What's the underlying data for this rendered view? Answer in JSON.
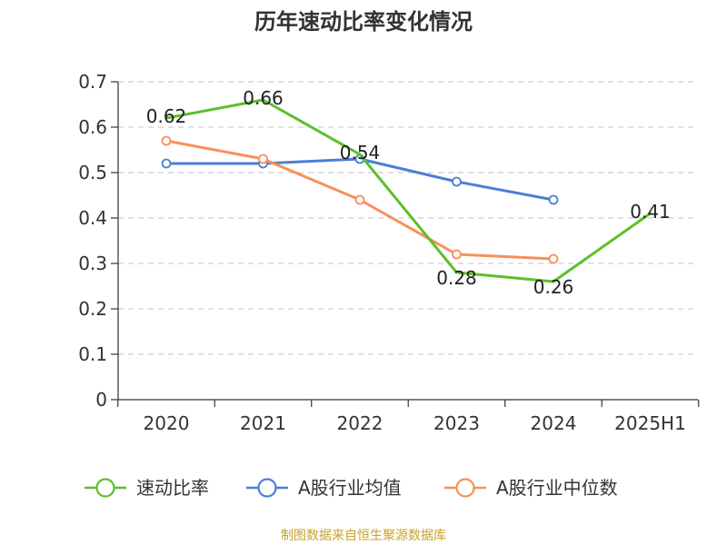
{
  "chart_data": {
    "type": "line",
    "title": "历年速动比率变化情况",
    "categories": [
      "2020",
      "2021",
      "2022",
      "2023",
      "2024",
      "2025H1"
    ],
    "y_ticks": [
      "0",
      "0.1",
      "0.2",
      "0.3",
      "0.4",
      "0.5",
      "0.6",
      "0.7"
    ],
    "ylim": [
      0,
      0.7
    ],
    "grid": true,
    "legend_position": "bottom",
    "series": [
      {
        "name": "速动比率",
        "color": "#5cc02a",
        "values": [
          0.62,
          0.66,
          0.54,
          0.28,
          0.26,
          0.41
        ],
        "labels": [
          "0.62",
          "0.66",
          "0.54",
          "0.28",
          "0.26",
          "0.41"
        ]
      },
      {
        "name": "A股行业均值",
        "color": "#4a7fd6",
        "values": [
          0.52,
          0.52,
          0.53,
          0.48,
          0.44,
          null
        ]
      },
      {
        "name": "A股行业中位数",
        "color": "#f7905a",
        "values": [
          0.57,
          0.53,
          0.44,
          0.32,
          0.31,
          null
        ]
      }
    ],
    "source": "制图数据来自恒生聚源数据库"
  }
}
